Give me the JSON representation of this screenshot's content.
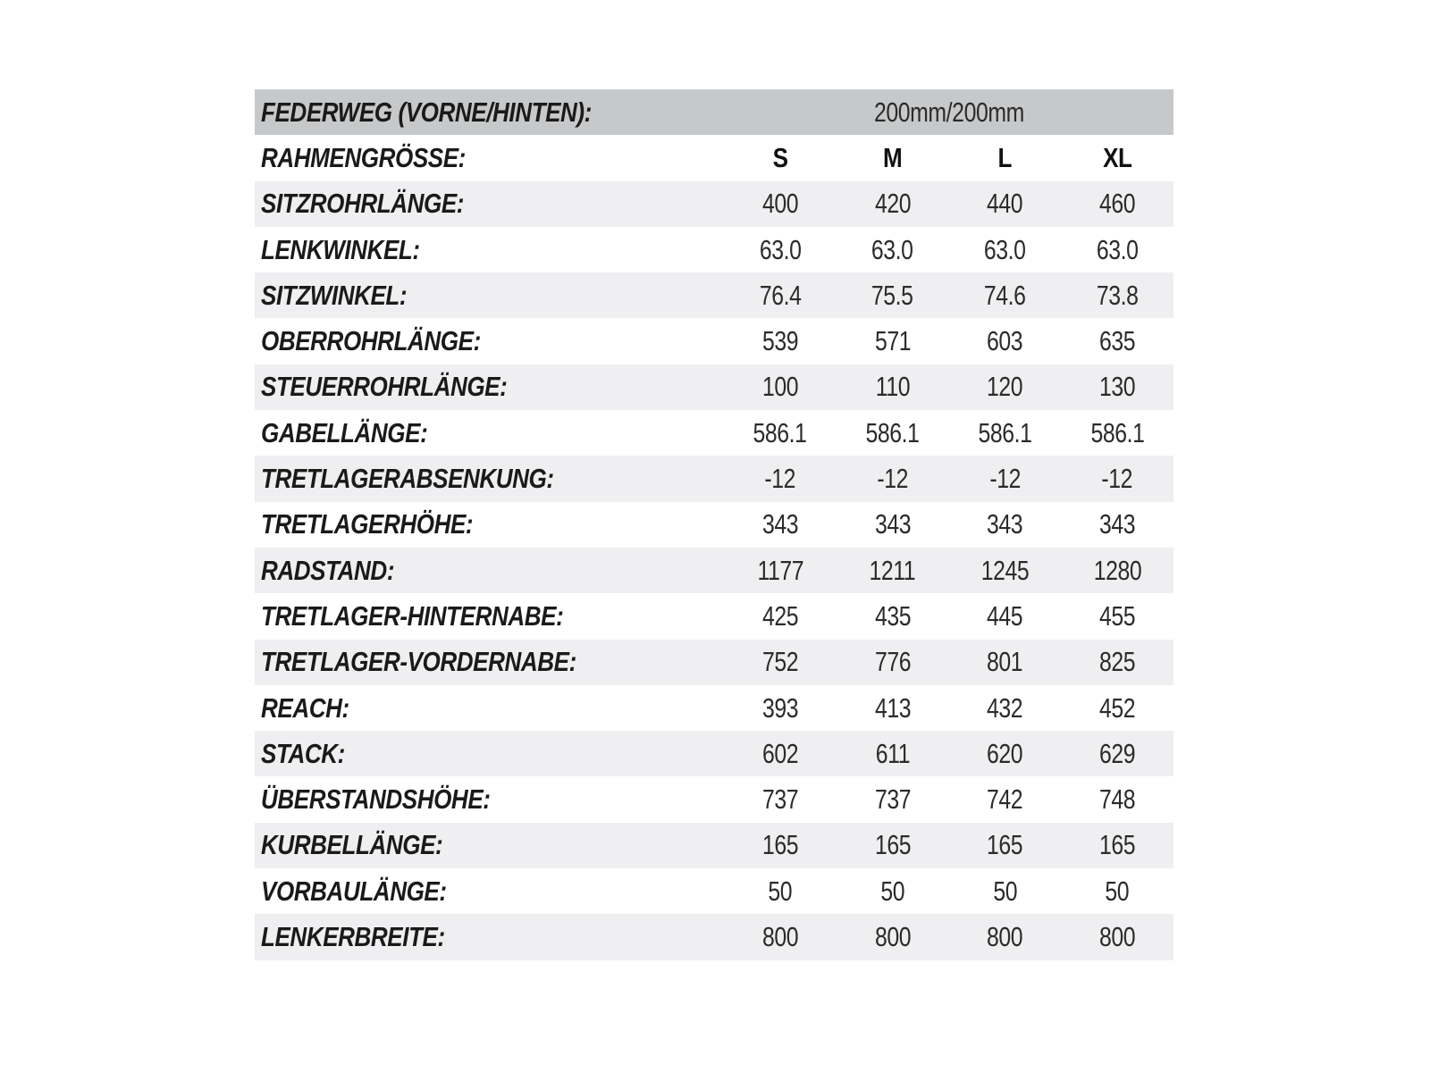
{
  "table": {
    "title_semantic": "bike-geometry-spec-table",
    "header": {
      "label": "FEDERWEG (VORNE/HINTEN):",
      "value": "200mm/200mm"
    },
    "size_row": {
      "label": "RAHMENGRÖSSE:",
      "sizes": [
        "S",
        "M",
        "L",
        "XL"
      ]
    },
    "rows": [
      {
        "label": "SITZROHRLÄNGE:",
        "values": [
          "400",
          "420",
          "440",
          "460"
        ]
      },
      {
        "label": "LENKWINKEL:",
        "values": [
          "63.0",
          "63.0",
          "63.0",
          "63.0"
        ]
      },
      {
        "label": "SITZWINKEL:",
        "values": [
          "76.4",
          "75.5",
          "74.6",
          "73.8"
        ]
      },
      {
        "label": "OBERROHRLÄNGE:",
        "values": [
          "539",
          "571",
          "603",
          "635"
        ]
      },
      {
        "label": "STEUERROHRLÄNGE:",
        "values": [
          "100",
          "110",
          "120",
          "130"
        ]
      },
      {
        "label": "GABELLÄNGE:",
        "values": [
          "586.1",
          "586.1",
          "586.1",
          "586.1"
        ]
      },
      {
        "label": "TRETLAGERABSENKUNG:",
        "values": [
          "-12",
          "-12",
          "-12",
          "-12"
        ]
      },
      {
        "label": "TRETLAGERHÖHE:",
        "values": [
          "343",
          "343",
          "343",
          "343"
        ]
      },
      {
        "label": "RADSTAND:",
        "values": [
          "1177",
          "1211",
          "1245",
          "1280"
        ]
      },
      {
        "label": "TRETLAGER-HINTERNABE:",
        "values": [
          "425",
          "435",
          "445",
          "455"
        ]
      },
      {
        "label": "TRETLAGER-VORDERNABE:",
        "values": [
          "752",
          "776",
          "801",
          "825"
        ]
      },
      {
        "label": "REACH:",
        "values": [
          "393",
          "413",
          "432",
          "452"
        ]
      },
      {
        "label": "STACK:",
        "values": [
          "602",
          "611",
          "620",
          "629"
        ]
      },
      {
        "label": "ÜBERSTANDSHÖHE:",
        "values": [
          "737",
          "737",
          "742",
          "748"
        ]
      },
      {
        "label": "KURBELLÄNGE:",
        "values": [
          "165",
          "165",
          "165",
          "165"
        ]
      },
      {
        "label": "VORBAULÄNGE:",
        "values": [
          "50",
          "50",
          "50",
          "50"
        ]
      },
      {
        "label": "LENKERBREITE:",
        "values": [
          "800",
          "800",
          "800",
          "800"
        ]
      }
    ],
    "colors": {
      "header_bg": "#c7c8ca",
      "stripe_bg": "#efeff1",
      "label_text": "#1a1a18",
      "value_text": "#2b2b29"
    }
  }
}
